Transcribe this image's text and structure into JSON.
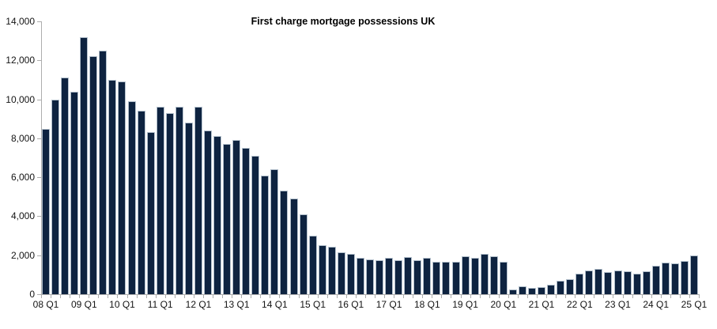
{
  "chart_data": {
    "type": "bar",
    "title": "First charge mortgage possessions UK",
    "xlabel": "",
    "ylabel": "",
    "ylim": [
      0,
      14000
    ],
    "y_tick_interval": 2000,
    "grid": false,
    "legend": "none",
    "bar_color": "#0E2340",
    "bar_border_color": "#B3C0CC",
    "axis_color": "#ADADAD",
    "label_color": "#141414",
    "x_tick_labels": [
      "08 Q1",
      "09 Q1",
      "10 Q1",
      "11 Q1",
      "12 Q1",
      "13 Q1",
      "14 Q1",
      "15 Q1",
      "16 Q1",
      "17 Q1",
      "18 Q1",
      "19 Q1",
      "20 Q1",
      "21 Q1",
      "22 Q1",
      "23 Q1",
      "24 Q1",
      "25 Q1"
    ],
    "categories": [
      "08 Q1",
      "08 Q2",
      "08 Q3",
      "08 Q4",
      "09 Q1",
      "09 Q2",
      "09 Q3",
      "09 Q4",
      "10 Q1",
      "10 Q2",
      "10 Q3",
      "10 Q4",
      "11 Q1",
      "11 Q2",
      "11 Q3",
      "11 Q4",
      "12 Q1",
      "12 Q2",
      "12 Q3",
      "12 Q4",
      "13 Q1",
      "13 Q2",
      "13 Q3",
      "13 Q4",
      "14 Q1",
      "14 Q2",
      "14 Q3",
      "14 Q4",
      "15 Q1",
      "15 Q2",
      "15 Q3",
      "15 Q4",
      "16 Q1",
      "16 Q2",
      "16 Q3",
      "16 Q4",
      "17 Q1",
      "17 Q2",
      "17 Q3",
      "17 Q4",
      "18 Q1",
      "18 Q2",
      "18 Q3",
      "18 Q4",
      "19 Q1",
      "19 Q2",
      "19 Q3",
      "19 Q4",
      "20 Q1",
      "20 Q2",
      "20 Q3",
      "20 Q4",
      "21 Q1",
      "21 Q2",
      "21 Q3",
      "21 Q4",
      "22 Q1",
      "22 Q2",
      "22 Q3",
      "22 Q4",
      "23 Q1",
      "23 Q2",
      "23 Q3",
      "23 Q4",
      "24 Q1",
      "24 Q2",
      "24 Q3",
      "24 Q4",
      "25 Q1"
    ],
    "values": [
      8500,
      10000,
      11100,
      10400,
      13200,
      12200,
      12500,
      11000,
      10900,
      9900,
      9400,
      8300,
      9600,
      9300,
      9600,
      8800,
      9600,
      8400,
      8100,
      7700,
      7900,
      7500,
      7100,
      6100,
      6400,
      5300,
      4900,
      4100,
      3000,
      2500,
      2450,
      2150,
      2050,
      1850,
      1800,
      1750,
      1850,
      1750,
      1900,
      1750,
      1850,
      1650,
      1650,
      1650,
      1950,
      1850,
      2050,
      1950,
      1650,
      230,
      400,
      310,
      370,
      470,
      710,
      760,
      1050,
      1200,
      1300,
      1130,
      1230,
      1190,
      1060,
      1190,
      1450,
      1610,
      1600,
      1700,
      2000
    ]
  }
}
